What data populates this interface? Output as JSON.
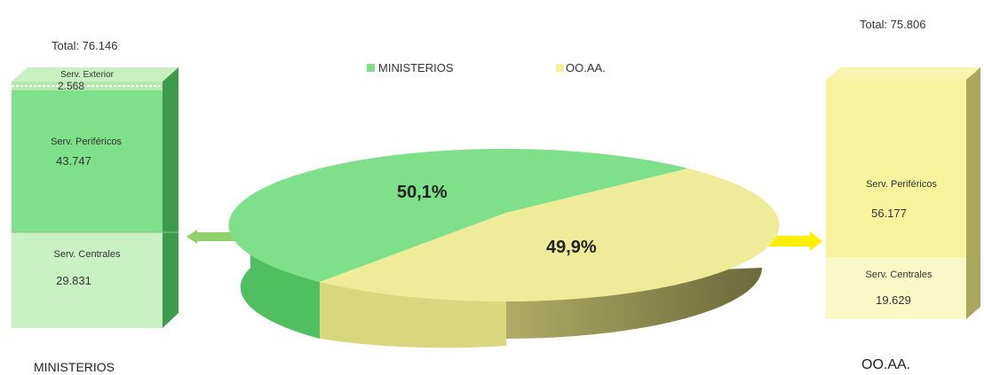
{
  "colors": {
    "ministerios": "#7fe08a",
    "ooaa": "#f4f29a",
    "arrow_left": "#8fd06a",
    "arrow_right": "#ffee00"
  },
  "legend": [
    {
      "name": "MINISTERIOS",
      "color": "#7fe08a"
    },
    {
      "name": "OO.AA.",
      "color": "#f4f29a"
    }
  ],
  "chart_data": [
    {
      "type": "pie",
      "title": "",
      "slices": [
        {
          "name": "MINISTERIOS",
          "value": 50.1,
          "label": "50,1%"
        },
        {
          "name": "OO.AA.",
          "value": 49.9,
          "label": "49,9%"
        }
      ]
    },
    {
      "type": "bar",
      "stacked": true,
      "title": "MINISTERIOS",
      "total_label": "Total: 76.146",
      "total": 76146,
      "segments": [
        {
          "name": "Serv. Centrales",
          "value": 29831,
          "value_label": "29.831"
        },
        {
          "name": "Serv. Periféricos",
          "value": 43747,
          "value_label": "43.747"
        },
        {
          "name": "Serv. Exterior",
          "value": 2568,
          "value_label": "2.568"
        }
      ]
    },
    {
      "type": "bar",
      "stacked": true,
      "title": "OO.AA.",
      "total_label": "Total: 75.806",
      "total": 75806,
      "segments": [
        {
          "name": "Serv. Centrales",
          "value": 19629,
          "value_label": "19.629"
        },
        {
          "name": "Serv. Periféricos",
          "value": 56177,
          "value_label": "56.177"
        }
      ]
    }
  ]
}
